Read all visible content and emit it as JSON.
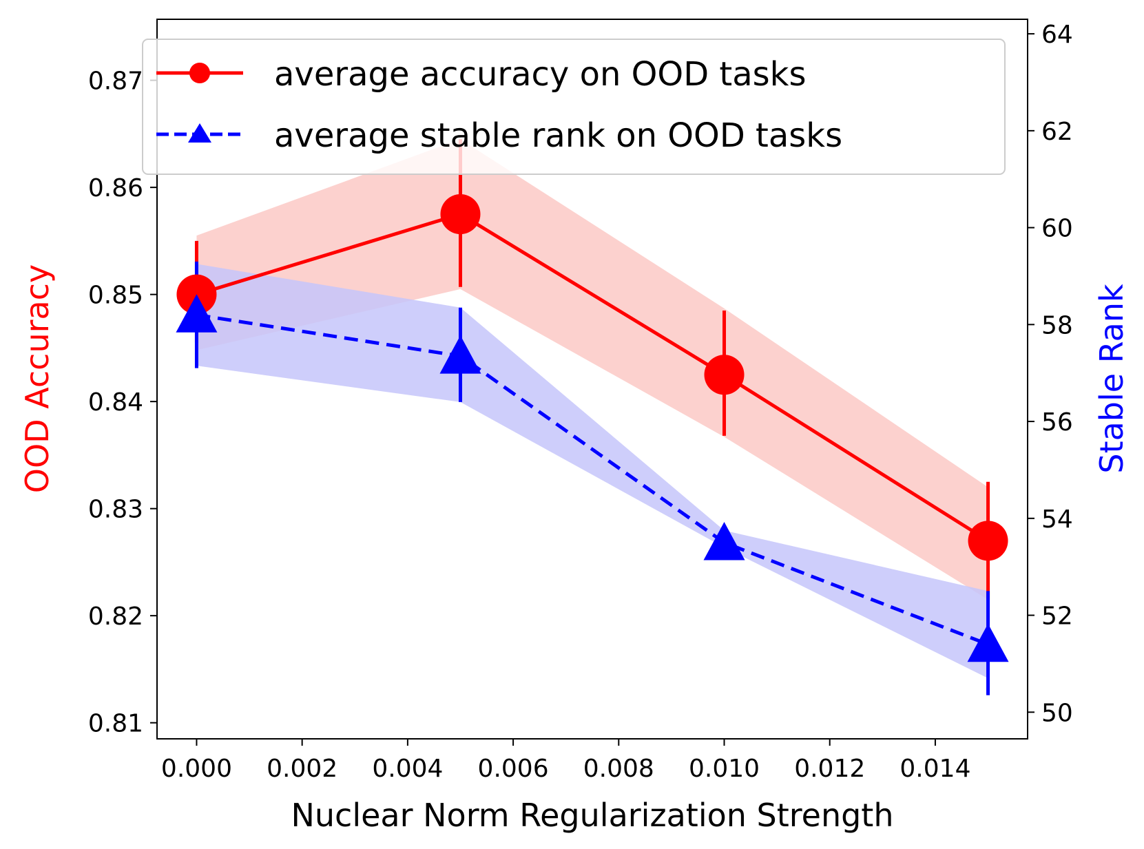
{
  "chart_data": {
    "type": "line",
    "title": "",
    "xlabel": "Nuclear Norm Regularization Strength",
    "ylabel_left": "OOD Accuracy",
    "ylabel_right": "Stable Rank",
    "ylabel_left_color": "#ff0000",
    "ylabel_right_color": "#0000ff",
    "x": [
      0.0,
      0.005,
      0.01,
      0.015
    ],
    "xlim": [
      -0.00075,
      0.01575
    ],
    "ylim_left": [
      0.8085,
      0.8757
    ],
    "ylim_right": [
      49.45,
      64.3
    ],
    "xticks": [
      {
        "value": 0.0,
        "label": "0.000"
      },
      {
        "value": 0.002,
        "label": "0.002"
      },
      {
        "value": 0.004,
        "label": "0.004"
      },
      {
        "value": 0.006,
        "label": "0.006"
      },
      {
        "value": 0.008,
        "label": "0.008"
      },
      {
        "value": 0.01,
        "label": "0.010"
      },
      {
        "value": 0.012,
        "label": "0.012"
      },
      {
        "value": 0.014,
        "label": "0.014"
      }
    ],
    "yticks_left": [
      {
        "value": 0.81,
        "label": "0.81"
      },
      {
        "value": 0.82,
        "label": "0.82"
      },
      {
        "value": 0.83,
        "label": "0.83"
      },
      {
        "value": 0.84,
        "label": "0.84"
      },
      {
        "value": 0.85,
        "label": "0.85"
      },
      {
        "value": 0.86,
        "label": "0.86"
      },
      {
        "value": 0.87,
        "label": "0.87"
      }
    ],
    "yticks_right": [
      {
        "value": 50,
        "label": "50"
      },
      {
        "value": 52,
        "label": "52"
      },
      {
        "value": 54,
        "label": "54"
      },
      {
        "value": 56,
        "label": "56"
      },
      {
        "value": 58,
        "label": "58"
      },
      {
        "value": 60,
        "label": "60"
      },
      {
        "value": 62,
        "label": "62"
      },
      {
        "value": 64,
        "label": "64"
      }
    ],
    "series": [
      {
        "name": "average accuracy on OOD tasks",
        "axis": "left",
        "color": "#ff0000",
        "band_color": "#fbc9c6",
        "line_style": "solid",
        "marker": "circle",
        "values": [
          0.85,
          0.8575,
          0.8425,
          0.827
        ],
        "band_low": [
          0.8448,
          0.8505,
          0.8367,
          0.8215
        ],
        "band_high": [
          0.8555,
          0.8645,
          0.8487,
          0.832
        ],
        "err_low": [
          0.8455,
          0.8507,
          0.8368,
          0.8215
        ],
        "err_high": [
          0.855,
          0.8645,
          0.8485,
          0.8325
        ]
      },
      {
        "name": "average stable rank on OOD tasks",
        "axis": "right",
        "color": "#0000ff",
        "band_color": "#c6c6fa",
        "line_style": "dashed",
        "marker": "triangle",
        "values": [
          58.2,
          57.35,
          53.5,
          51.4
        ],
        "band_low": [
          57.15,
          56.4,
          53.4,
          50.7
        ],
        "band_high": [
          59.25,
          58.35,
          53.75,
          52.5
        ],
        "err_low": [
          57.1,
          56.4,
          53.45,
          50.35
        ],
        "err_high": [
          59.3,
          58.35,
          53.55,
          52.5
        ]
      }
    ],
    "legend": {
      "position": "top",
      "entries": [
        "average accuracy on OOD tasks",
        "average stable rank on OOD tasks"
      ]
    }
  }
}
